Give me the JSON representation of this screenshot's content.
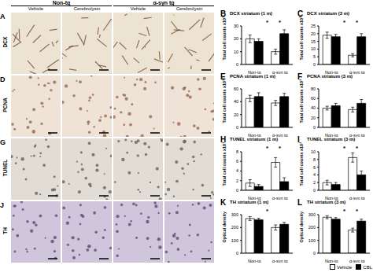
{
  "image_panels": {
    "group_labels": [
      "Non-tg",
      "α-syn tg"
    ],
    "treatment_labels": [
      "Vehicle",
      "Cerebrolysin",
      "Vehicle",
      "Cerebrolysin"
    ],
    "rows": [
      {
        "panel": "A",
        "label": "DCX"
      },
      {
        "panel": "D",
        "label": "PCNA"
      },
      {
        "panel": "G",
        "label": "TUNEL"
      },
      {
        "panel": "J",
        "label": "TH"
      }
    ]
  },
  "chart_data": [
    {
      "panel": "B",
      "type": "bar",
      "title": "DCX striatum (1 m)",
      "y_label": "Total cell counts x10³",
      "categories": [
        "Non-tg",
        "α-syn tg"
      ],
      "series": [
        {
          "name": "Vehicle",
          "color": "#ffffff",
          "values": [
            20,
            10
          ],
          "errors": [
            3,
            2
          ]
        },
        {
          "name": "CBL",
          "color": "#000000",
          "values": [
            18,
            24
          ],
          "errors": [
            2,
            3
          ]
        }
      ],
      "ylim": [
        0,
        30
      ],
      "yticks": [
        0,
        10,
        20,
        30
      ],
      "annotations": [
        "*",
        "*"
      ]
    },
    {
      "panel": "C",
      "type": "bar",
      "title": "DCX striatum (3 m)",
      "y_label": "Total cell counts x10³",
      "categories": [
        "Non-tg",
        "α-syn tg"
      ],
      "series": [
        {
          "name": "Vehicle",
          "color": "#ffffff",
          "values": [
            19,
            6
          ],
          "errors": [
            2,
            1
          ]
        },
        {
          "name": "CBL",
          "color": "#000000",
          "values": [
            18,
            18
          ],
          "errors": [
            1.5,
            2
          ]
        }
      ],
      "ylim": [
        0,
        25
      ],
      "yticks": [
        0,
        5,
        10,
        15,
        20,
        25
      ],
      "annotations": [
        "*",
        "*"
      ]
    },
    {
      "panel": "E",
      "type": "bar",
      "title": "PCNA striatum (1 m)",
      "y_label": "Total cell counts x10³",
      "categories": [
        "Non-tg",
        "α-syn tg"
      ],
      "series": [
        {
          "name": "Vehicle",
          "color": "#ffffff",
          "values": [
            45,
            38
          ],
          "errors": [
            5,
            4
          ]
        },
        {
          "name": "CBL",
          "color": "#000000",
          "values": [
            48,
            48
          ],
          "errors": [
            6,
            5
          ]
        }
      ],
      "ylim": [
        0,
        60
      ],
      "yticks": [
        0,
        20,
        40,
        60
      ],
      "annotations": []
    },
    {
      "panel": "F",
      "type": "bar",
      "title": "PCNA striatum (3 m)",
      "y_label": "Total cell counts x10³",
      "categories": [
        "Non-tg",
        "α-syn tg"
      ],
      "series": [
        {
          "name": "Vehicle",
          "color": "#ffffff",
          "values": [
            40,
            37
          ],
          "errors": [
            4,
            5
          ]
        },
        {
          "name": "CBL",
          "color": "#000000",
          "values": [
            45,
            50
          ],
          "errors": [
            5,
            8
          ]
        }
      ],
      "ylim": [
        0,
        80
      ],
      "yticks": [
        0,
        20,
        40,
        60,
        80
      ],
      "annotations": []
    },
    {
      "panel": "H",
      "type": "bar",
      "title": "TUNEL striatum (1 m)",
      "y_label": "Total cell counts x10³",
      "categories": [
        "Non-tg",
        "α-syn tg"
      ],
      "series": [
        {
          "name": "Vehicle",
          "color": "#ffffff",
          "values": [
            1.5,
            5.8
          ],
          "errors": [
            0.7,
            1
          ]
        },
        {
          "name": "CBL",
          "color": "#000000",
          "values": [
            0.8,
            1.8
          ],
          "errors": [
            0.4,
            0.8
          ]
        }
      ],
      "ylim": [
        0,
        8
      ],
      "yticks": [
        0,
        2,
        4,
        6,
        8
      ],
      "annotations": [
        "*",
        "*"
      ]
    },
    {
      "panel": "I",
      "type": "bar",
      "title": "TUNEL striatum (3 m)",
      "y_label": "Total cell counts x10³",
      "categories": [
        "Non-tg",
        "α-syn tg"
      ],
      "series": [
        {
          "name": "Vehicle",
          "color": "#ffffff",
          "values": [
            2,
            8.5
          ],
          "errors": [
            0.6,
            1.2
          ]
        },
        {
          "name": "CBL",
          "color": "#000000",
          "values": [
            1.5,
            4
          ],
          "errors": [
            0.5,
            1
          ]
        }
      ],
      "ylim": [
        0,
        10
      ],
      "yticks": [
        0,
        2,
        4,
        6,
        8,
        10
      ],
      "annotations": [
        "*",
        "*"
      ]
    },
    {
      "panel": "K",
      "type": "bar",
      "title": "TH striatum (1 m)",
      "y_label": "Optical density",
      "categories": [
        "Non-tg",
        "α-syn tg"
      ],
      "series": [
        {
          "name": "Vehicle",
          "color": "#ffffff",
          "values": [
            270,
            200
          ],
          "errors": [
            15,
            20
          ]
        },
        {
          "name": "CBL",
          "color": "#000000",
          "values": [
            260,
            225
          ],
          "errors": [
            12,
            15
          ]
        }
      ],
      "ylim": [
        0,
        300
      ],
      "yticks": [
        0,
        100,
        200,
        300
      ],
      "annotations": [
        "*"
      ]
    },
    {
      "panel": "L",
      "type": "bar",
      "title": "TH striatum (3 m)",
      "y_label": "Optical density",
      "categories": [
        "Non-tg",
        "α-syn tg"
      ],
      "series": [
        {
          "name": "Vehicle",
          "color": "#ffffff",
          "values": [
            280,
            180
          ],
          "errors": [
            12,
            15
          ]
        },
        {
          "name": "CBL",
          "color": "#000000",
          "values": [
            265,
            250
          ],
          "errors": [
            12,
            15
          ]
        }
      ],
      "ylim": [
        0,
        300
      ],
      "yticks": [
        0,
        100,
        200,
        300
      ],
      "annotations": [
        "*",
        "*"
      ],
      "legend": "bottom right"
    }
  ]
}
